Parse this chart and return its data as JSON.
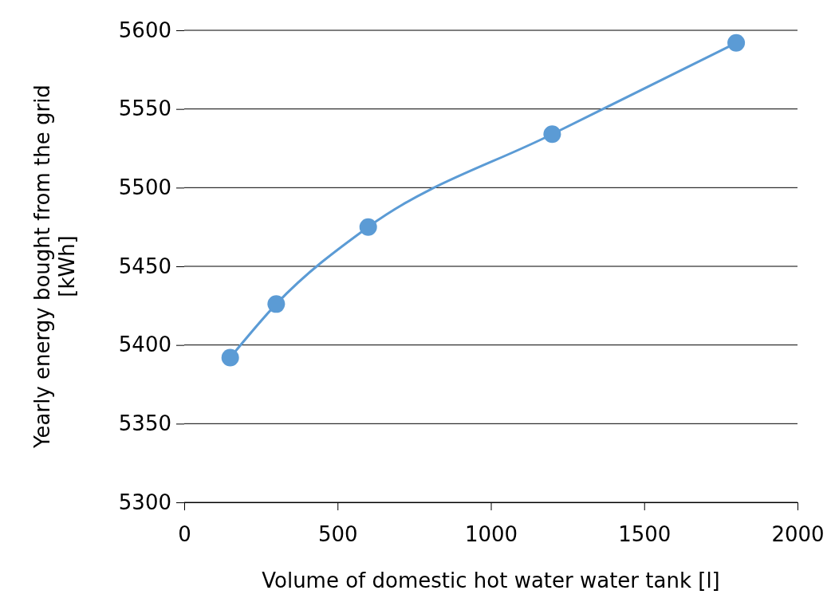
{
  "chart_data": {
    "type": "line",
    "xlabel": "Volume of domestic hot water water tank [l]",
    "ylabel": "Yearly energy bought from the grid [kWh]",
    "x": [
      150,
      300,
      600,
      1200,
      1800
    ],
    "series": [
      {
        "color": "#5b9bd5",
        "values": [
          5392,
          5426,
          5475,
          5534,
          5592
        ]
      }
    ],
    "xlim": [
      0,
      2000
    ],
    "xticks": [
      0,
      500,
      1000,
      1500,
      2000
    ],
    "ylim": [
      5300,
      5600
    ],
    "yticks": [
      5300,
      5350,
      5400,
      5450,
      5500,
      5550,
      5600
    ],
    "grid": "y",
    "marker": "circle",
    "line_style": "solid"
  }
}
